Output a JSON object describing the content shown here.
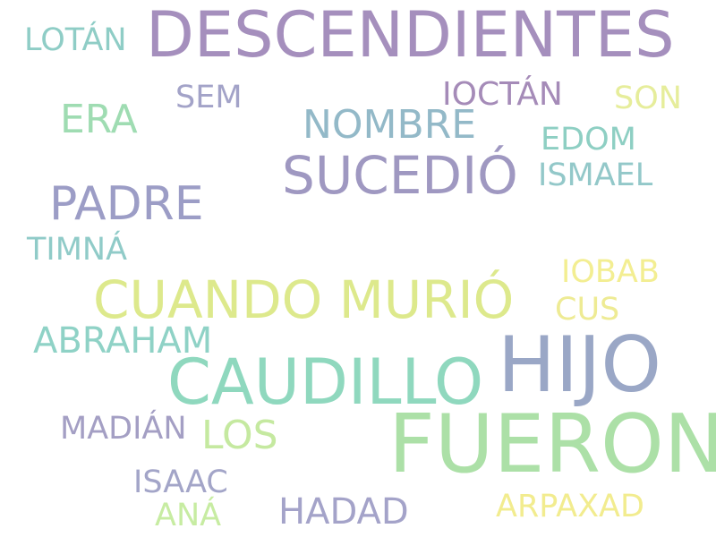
{
  "words": [
    {
      "text": "DESCENDIENTES",
      "color": "#a58fbd"
    },
    {
      "text": "FUERON",
      "color": "#ace0a7"
    },
    {
      "text": "HIJO",
      "color": "#9aa7c6"
    },
    {
      "text": "CAUDILLO",
      "color": "#8fd8be"
    },
    {
      "text": "CUANDO MURIÓ",
      "color": "#dde98c"
    },
    {
      "text": "SUCEDIÓ",
      "color": "#9f98c1"
    },
    {
      "text": "PADRE",
      "color": "#9c9dc6"
    },
    {
      "text": "NOMBRE",
      "color": "#93b9c8"
    },
    {
      "text": "ERA",
      "color": "#9fdcb2"
    },
    {
      "text": "ABRAHAM",
      "color": "#8fd2c6"
    },
    {
      "text": "LOS",
      "color": "#c5e9a0"
    },
    {
      "text": "HADAD",
      "color": "#a4a3c9"
    },
    {
      "text": "IOCTÁN",
      "color": "#a58bb8"
    },
    {
      "text": "ISMAEL",
      "color": "#93c8c9"
    },
    {
      "text": "EDOM",
      "color": "#8ecfc3"
    },
    {
      "text": "LOTÁN",
      "color": "#8fcdc6"
    },
    {
      "text": "SEM",
      "color": "#a3a3c8"
    },
    {
      "text": "TIMNÁ",
      "color": "#90cbc8"
    },
    {
      "text": "MADIÁN",
      "color": "#a49fc4"
    },
    {
      "text": "ISAAC",
      "color": "#a3a5c8"
    },
    {
      "text": "IOBAB",
      "color": "#f3ee92"
    },
    {
      "text": "ARPAXAD",
      "color": "#f2ec8f"
    },
    {
      "text": "CUS",
      "color": "#eeeb94"
    },
    {
      "text": "SON",
      "color": "#e6ed9b"
    },
    {
      "text": "ANÁ",
      "color": "#c7eca2"
    }
  ]
}
